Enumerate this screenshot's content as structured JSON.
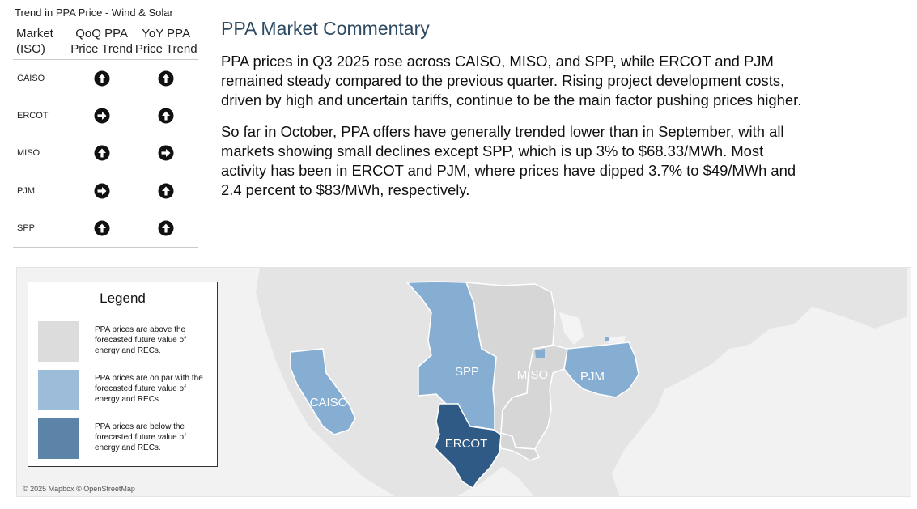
{
  "trend_table": {
    "title": "Trend in PPA Price - Wind & Solar",
    "headers": {
      "market": "Market (ISO)",
      "qoq": "QoQ PPA Price Trend",
      "yoy": "YoY PPA Price Trend"
    },
    "rows": [
      {
        "market": "CAISO",
        "qoq": "up",
        "yoy": "up"
      },
      {
        "market": "ERCOT",
        "qoq": "flat",
        "yoy": "up"
      },
      {
        "market": "MISO",
        "qoq": "up",
        "yoy": "flat"
      },
      {
        "market": "PJM",
        "qoq": "flat",
        "yoy": "up"
      },
      {
        "market": "SPP",
        "qoq": "up",
        "yoy": "up"
      }
    ],
    "icons": {
      "up": "arrow-up-circle-icon",
      "flat": "arrow-right-circle-icon"
    }
  },
  "commentary": {
    "title": "PPA Market Commentary",
    "paragraphs": [
      "PPA prices in Q3 2025 rose across CAISO, MISO, and SPP, while ERCOT and PJM remained steady compared to the previous quarter. Rising project development costs, driven by high and uncertain tariffs, continue to be the main factor pushing prices higher.",
      "So far in October, PPA offers have generally trended lower than in September, with all markets showing small declines except SPP, which is up 3% to $68.33/MWh. Most activity has been in ERCOT and PJM, where prices have dipped 3.7% to $49/MWh and 2.4 percent to $83/MWh, respectively."
    ]
  },
  "map": {
    "regions": [
      {
        "name": "CAISO",
        "category": "on_par"
      },
      {
        "name": "SPP",
        "category": "on_par"
      },
      {
        "name": "MISO",
        "category": "above"
      },
      {
        "name": "PJM",
        "category": "on_par"
      },
      {
        "name": "ERCOT",
        "category": "below"
      }
    ],
    "attribution": "© 2025 Mapbox © OpenStreetMap",
    "legend": {
      "title": "Legend",
      "items": [
        {
          "category": "above",
          "color": "#dcdcdc",
          "text": "PPA prices are above the forecasted future value of energy and RECs."
        },
        {
          "category": "on_par",
          "color": "#9dbcd9",
          "text": "PPA prices are on par with the forecasted future value of energy and RECs."
        },
        {
          "category": "below",
          "color": "#5b84a8",
          "text": "PPA prices are below the forecasted future value of energy and RECs."
        }
      ]
    },
    "colors": {
      "above": "#d6d6d6",
      "on_par": "#86aed3",
      "below": "#2e5a85",
      "land": "#e4e4e4",
      "water": "#f2f2f2",
      "border": "#ffffff"
    }
  }
}
